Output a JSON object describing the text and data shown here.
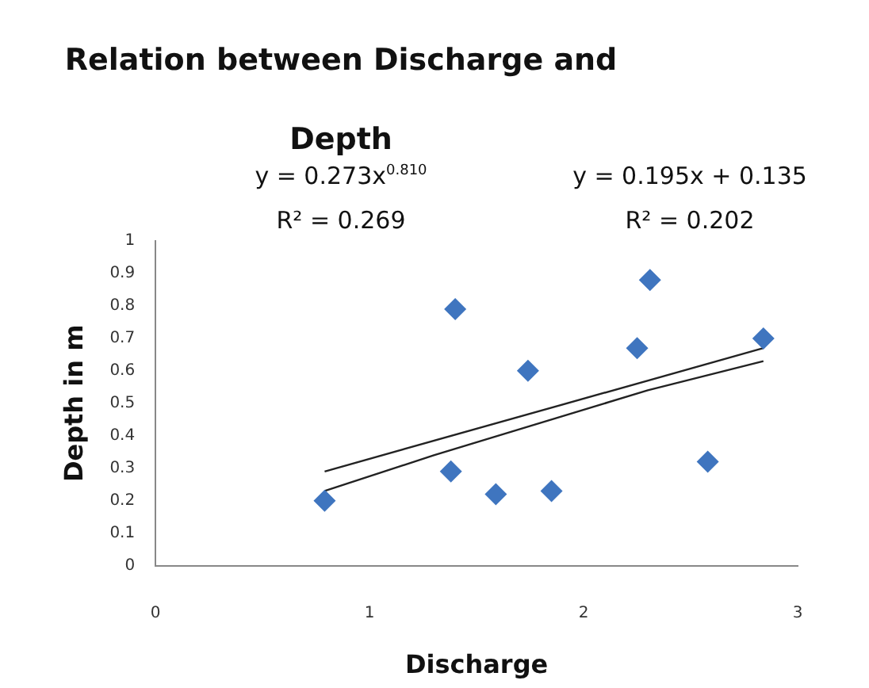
{
  "chart_data": {
    "type": "scatter",
    "title": "Relation between Discharge and Depth",
    "xlabel": "Discharge",
    "ylabel": "Depth in m",
    "xlim": [
      0,
      3
    ],
    "xticks": [
      0,
      1,
      2,
      3
    ],
    "ylim": [
      0,
      1
    ],
    "yticks": [
      0,
      0.1,
      0.2,
      0.3,
      0.4,
      0.5,
      0.6,
      0.7,
      0.8,
      0.9,
      1
    ],
    "grid": false,
    "legend": false,
    "annotations": [
      "y = 0.273x$^{0.810}$",
      "R² = 0.269",
      "y = 0.195x + 0.135",
      "R² = 0.202"
    ],
    "series": [
      {
        "marker": "diamond",
        "color": "#3f75bf",
        "x": [
          0.79,
          1.4,
          1.38,
          1.59,
          1.74,
          1.85,
          2.25,
          2.31,
          2.58,
          2.84
        ],
        "values": [
          0.2,
          0.79,
          0.29,
          0.22,
          0.6,
          0.23,
          0.67,
          0.88,
          0.32,
          0.7
        ]
      },
      {
        "type": "line",
        "marker": "none",
        "color": "#222222",
        "x": [
          0.79,
          2.84
        ],
        "values": [
          0.29,
          0.67
        ]
      },
      {
        "type": "line",
        "marker": "none",
        "color": "#222222",
        "x": [
          0.79,
          1.3,
          1.8,
          2.3,
          2.84
        ],
        "values": [
          0.23,
          0.34,
          0.44,
          0.54,
          0.63
        ]
      }
    ]
  }
}
